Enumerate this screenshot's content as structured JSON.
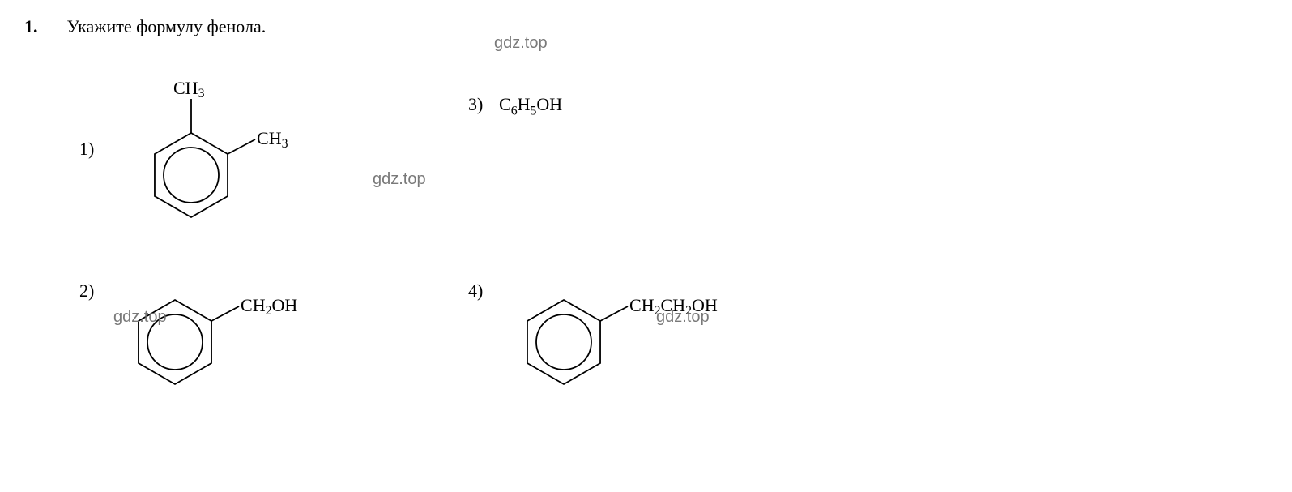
{
  "question": {
    "number": "1.",
    "text": "Укажите формулу фенола."
  },
  "watermark": "gdz.top",
  "options": {
    "labels": [
      "1)",
      "2)",
      "3)",
      "4)"
    ],
    "opt3_formula_html": "C<sub>6</sub>H<sub>5</sub>OH",
    "ch3": "CH",
    "ch2oh_ch2": "CH",
    "ch2oh_oh": "OH",
    "ch2ch2oh_a": "CH",
    "ch2ch2oh_b": "CH",
    "ch2ch2oh_oh": "OH",
    "sub2": "2",
    "sub3": "3"
  },
  "style": {
    "stroke": "#000000",
    "stroke_width": 1.8,
    "ring_outer_r": 52,
    "ring_inner_r": 34,
    "font_family": "Times New Roman, serif",
    "label_fontsize": 22,
    "subst_fontsize": 22,
    "background": "#ffffff"
  }
}
